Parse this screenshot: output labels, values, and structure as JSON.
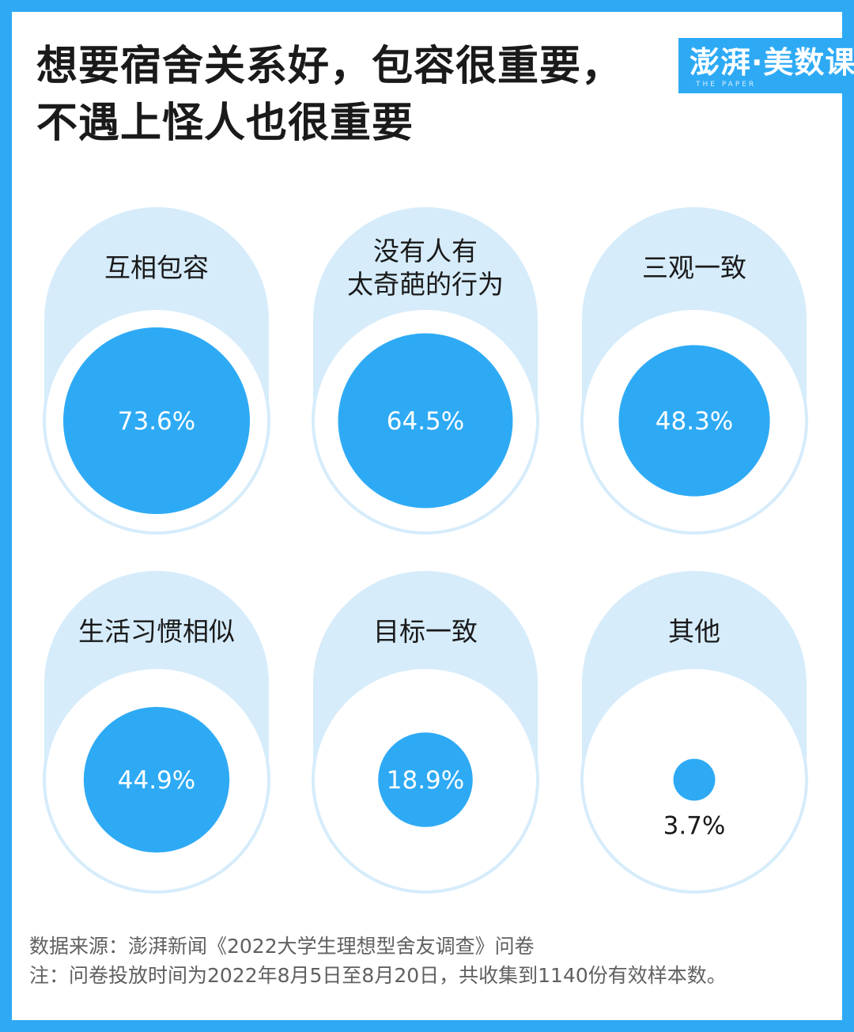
{
  "header": {
    "title_line1": "想要宿舍关系好，包容很重要，",
    "title_line2": "不遇上怪人也很重要"
  },
  "logo": {
    "text": "澎湃·美数课",
    "subtext": "THE PAPER"
  },
  "footer": {
    "source": "数据来源：澎湃新闻《2022大学生理想型舍友调查》问卷",
    "note": "注：问卷投放时间为2022年8月5日至8月20日，共收集到1140份有效样本数。"
  },
  "colors": {
    "accent": "#2eaaf5",
    "panel": "#d6ecfb",
    "ring": "#d6ecfb",
    "text": "#1a1a1a"
  },
  "chart_data": {
    "type": "proportional-circles",
    "unit": "%",
    "items": [
      {
        "label_lines": [
          "互相包容"
        ],
        "value": 73.6,
        "display": "73.6%"
      },
      {
        "label_lines": [
          "没有人有",
          "太奇葩的行为"
        ],
        "value": 64.5,
        "display": "64.5%"
      },
      {
        "label_lines": [
          "三观一致"
        ],
        "value": 48.3,
        "display": "48.3%"
      },
      {
        "label_lines": [
          "生活习惯相似"
        ],
        "value": 44.9,
        "display": "44.9%"
      },
      {
        "label_lines": [
          "目标一致"
        ],
        "value": 18.9,
        "display": "18.9%"
      },
      {
        "label_lines": [
          "其他"
        ],
        "value": 3.7,
        "display": "3.7%"
      }
    ]
  }
}
